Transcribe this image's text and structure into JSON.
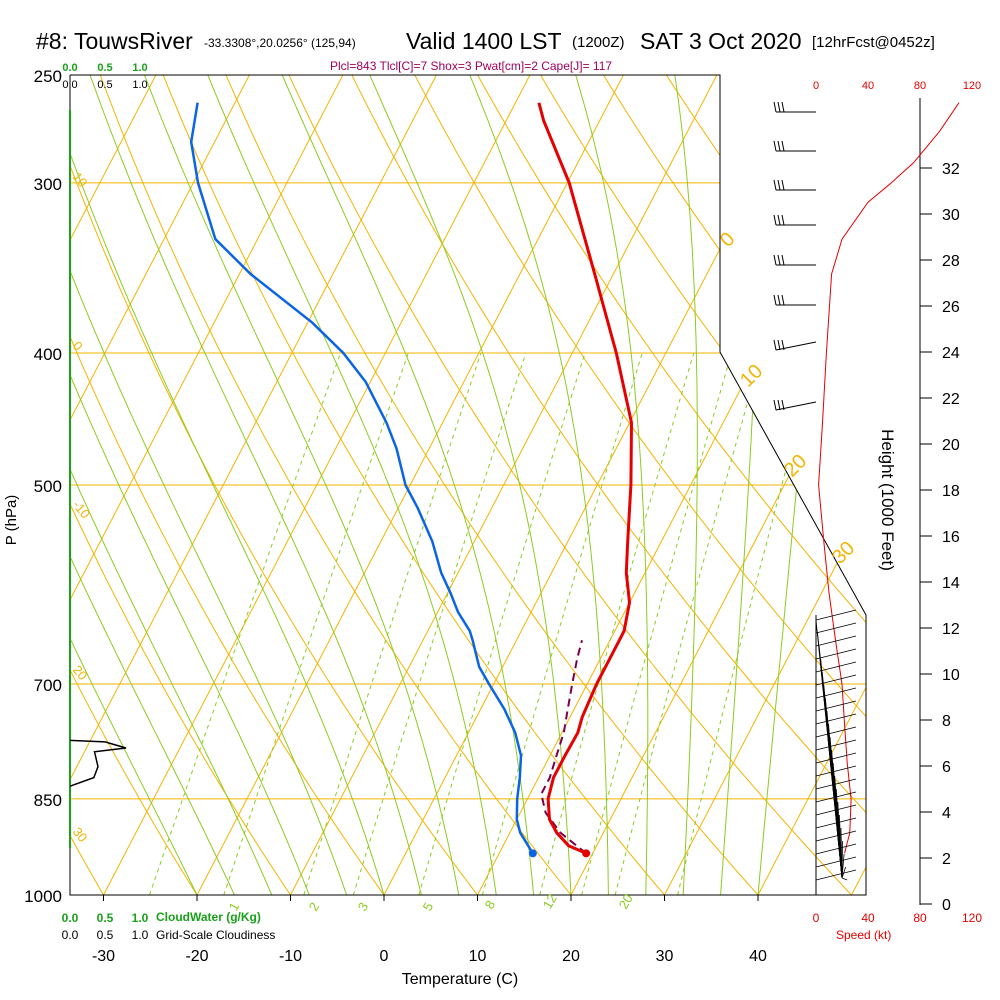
{
  "header": {
    "station": "#8: TouwsRiver",
    "coords": "-33.3308°,20.0256° (125,94)",
    "valid": "Valid 1400 LST",
    "zulu": "(1200Z)",
    "date": "SAT 3 Oct 2020",
    "fcst": "[12hrFcst@0452z]",
    "indices": "Plcl=843 Tlcl[C]=7 Shox=3 Pwat[cm]=2 Cape[J]= 117"
  },
  "colors": {
    "isotherm": "#f5b400",
    "isobar": "#f5b400",
    "dry_adiabat": "#f5b400",
    "moist_adiabat": "#8ccc20",
    "mixing_ratio": "#8ccc20",
    "temperature": "#e60000",
    "dewpoint": "#0a64e6",
    "parcel": "#7a004c",
    "cloudwater": "#1aa01a",
    "speed": "#e60000",
    "indices": "#a0005a"
  },
  "cloud_scale": {
    "cloudwater_ticks": [
      "0.0",
      "0.5",
      "1.0"
    ],
    "cloudiness_ticks": [
      "0.0",
      "0.5",
      "1.0"
    ],
    "cloudwater_label": "CloudWater (g/Kg)",
    "cloudiness_label": "Grid-Scale Cloudiness"
  },
  "speed_scale": {
    "ticks": [
      "0",
      "40",
      "80",
      "120"
    ],
    "label": "Speed (kt)"
  },
  "chart_data": {
    "type": "skewt",
    "xlabel": "Temperature (C)",
    "ylabel": "P (hPa)",
    "y2label": "Height (1000 Feet)",
    "xlim": [
      -35,
      47
    ],
    "ylim": [
      1000,
      250
    ],
    "x_ticks": [
      "-30",
      "-20",
      "-10",
      "0",
      "10",
      "20",
      "30",
      "40"
    ],
    "y_ticks": [
      "1000",
      "850",
      "700",
      "500",
      "400",
      "300",
      "250"
    ],
    "height_ticks": [
      "0",
      "2",
      "4",
      "6",
      "8",
      "10",
      "12",
      "14",
      "16",
      "18",
      "20",
      "22",
      "24",
      "26",
      "28",
      "30",
      "32"
    ],
    "mixing_ratio_labels": [
      "1",
      "2",
      "3",
      "5",
      "8",
      "12",
      "20"
    ],
    "dry_adiabat_labels": [
      "30",
      "20",
      "10",
      "0",
      "-10",
      "-20",
      "-30"
    ],
    "moist_adiabat_labels": [
      "0",
      "10",
      "20",
      "30"
    ],
    "temperature": [
      [
        932,
        19.3
      ],
      [
        920,
        17.0
      ],
      [
        900,
        15.0
      ],
      [
        880,
        13.5
      ],
      [
        850,
        12.2
      ],
      [
        820,
        11.6
      ],
      [
        790,
        11.6
      ],
      [
        760,
        11.7
      ],
      [
        740,
        11.3
      ],
      [
        700,
        11.0
      ],
      [
        660,
        11.0
      ],
      [
        640,
        11.0
      ],
      [
        610,
        10.0
      ],
      [
        580,
        8.0
      ],
      [
        550,
        6.4
      ],
      [
        500,
        3.6
      ],
      [
        450,
        0.2
      ],
      [
        400,
        -5.3
      ],
      [
        350,
        -12.0
      ],
      [
        300,
        -19.8
      ],
      [
        270,
        -26.0
      ],
      [
        262,
        -27.5
      ]
    ],
    "dewpoint": [
      [
        932,
        13.6
      ],
      [
        900,
        11.1
      ],
      [
        880,
        10.0
      ],
      [
        850,
        8.9
      ],
      [
        820,
        8.0
      ],
      [
        790,
        6.9
      ],
      [
        760,
        5.0
      ],
      [
        730,
        2.5
      ],
      [
        700,
        -0.5
      ],
      [
        680,
        -2.5
      ],
      [
        650,
        -4.7
      ],
      [
        640,
        -5.5
      ],
      [
        620,
        -7.8
      ],
      [
        600,
        -9.7
      ],
      [
        580,
        -11.8
      ],
      [
        550,
        -14.5
      ],
      [
        520,
        -17.9
      ],
      [
        500,
        -20.5
      ],
      [
        470,
        -23.5
      ],
      [
        450,
        -26.0
      ],
      [
        420,
        -30.5
      ],
      [
        400,
        -34.5
      ],
      [
        380,
        -39.5
      ],
      [
        350,
        -48.8
      ],
      [
        330,
        -54.5
      ],
      [
        300,
        -59.5
      ],
      [
        280,
        -62.5
      ],
      [
        262,
        -64.0
      ]
    ],
    "parcel": [
      [
        932,
        19.3
      ],
      [
        900,
        15.4
      ],
      [
        870,
        12.7
      ],
      [
        843,
        11.2
      ],
      [
        820,
        11.2
      ],
      [
        790,
        10.7
      ],
      [
        760,
        10.2
      ],
      [
        730,
        9.3
      ],
      [
        700,
        8.4
      ],
      [
        670,
        7.5
      ],
      [
        650,
        7.0
      ]
    ],
    "sfc_markers": {
      "temperature": [
        932,
        19.3
      ],
      "dewpoint": [
        932,
        13.6
      ]
    },
    "wind_speed": [
      [
        932,
        22
      ],
      [
        900,
        26
      ],
      [
        850,
        27
      ],
      [
        800,
        24
      ],
      [
        750,
        22
      ],
      [
        700,
        20
      ],
      [
        650,
        15
      ],
      [
        600,
        10
      ],
      [
        550,
        6
      ],
      [
        500,
        2
      ],
      [
        450,
        5
      ],
      [
        400,
        8
      ],
      [
        350,
        12
      ],
      [
        330,
        20
      ],
      [
        310,
        40
      ],
      [
        300,
        58
      ],
      [
        290,
        75
      ],
      [
        275,
        95
      ],
      [
        262,
        110
      ]
    ],
    "cloudiness": [
      [
        770,
        0.0
      ],
      [
        772,
        0.5
      ],
      [
        780,
        0.8
      ],
      [
        785,
        0.35
      ],
      [
        805,
        0.4
      ],
      [
        820,
        0.34
      ],
      [
        832,
        0.0
      ]
    ]
  }
}
